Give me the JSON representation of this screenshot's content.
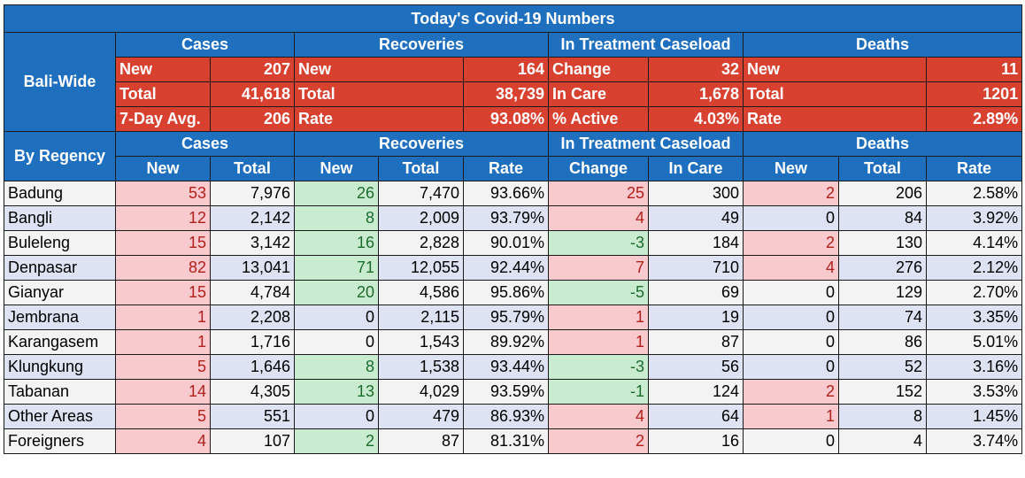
{
  "title": "Today's Covid-19 Numbers",
  "groups": [
    "Cases",
    "Recoveries",
    "In Treatment Caseload",
    "Deaths"
  ],
  "bali_wide": {
    "label": "Bali-Wide",
    "rows": [
      [
        [
          "New",
          "207"
        ],
        [
          "New",
          "164"
        ],
        [
          "Change",
          "32"
        ],
        [
          "New",
          "11"
        ]
      ],
      [
        [
          "Total",
          "41,618"
        ],
        [
          "Total",
          "38,739"
        ],
        [
          "In Care",
          "1,678"
        ],
        [
          "Total",
          "1201"
        ]
      ],
      [
        [
          "7-Day Avg.",
          "206"
        ],
        [
          "Rate",
          "93.08%"
        ],
        [
          "% Active",
          "4.03%"
        ],
        [
          "Rate",
          "2.89%"
        ]
      ]
    ]
  },
  "by_regency": {
    "label": "By Regency",
    "columns": [
      "New",
      "Total",
      "New",
      "Total",
      "Rate",
      "Change",
      "In Care",
      "New",
      "Total",
      "Rate"
    ],
    "rows": [
      [
        "Badung",
        "53",
        "7,976",
        "26",
        "7,470",
        "93.66%",
        "25",
        "300",
        "2",
        "206",
        "2.58%"
      ],
      [
        "Bangli",
        "12",
        "2,142",
        "8",
        "2,009",
        "93.79%",
        "4",
        "49",
        "0",
        "84",
        "3.92%"
      ],
      [
        "Buleleng",
        "15",
        "3,142",
        "16",
        "2,828",
        "90.01%",
        "-3",
        "184",
        "2",
        "130",
        "4.14%"
      ],
      [
        "Denpasar",
        "82",
        "13,041",
        "71",
        "12,055",
        "92.44%",
        "7",
        "710",
        "4",
        "276",
        "2.12%"
      ],
      [
        "Gianyar",
        "15",
        "4,784",
        "20",
        "4,586",
        "95.86%",
        "-5",
        "69",
        "0",
        "129",
        "2.70%"
      ],
      [
        "Jembrana",
        "1",
        "2,208",
        "0",
        "2,115",
        "95.79%",
        "1",
        "19",
        "0",
        "74",
        "3.35%"
      ],
      [
        "Karangasem",
        "1",
        "1,716",
        "0",
        "1,543",
        "89.92%",
        "1",
        "87",
        "0",
        "86",
        "5.01%"
      ],
      [
        "Klungkung",
        "5",
        "1,646",
        "8",
        "1,538",
        "93.44%",
        "-3",
        "56",
        "0",
        "52",
        "3.16%"
      ],
      [
        "Tabanan",
        "14",
        "4,305",
        "13",
        "4,029",
        "93.59%",
        "-1",
        "124",
        "2",
        "152",
        "3.53%"
      ],
      [
        "Other Areas",
        "5",
        "551",
        "0",
        "479",
        "86.93%",
        "4",
        "64",
        "1",
        "8",
        "1.45%"
      ],
      [
        "Foreigners",
        "4",
        "107",
        "2",
        "87",
        "81.31%",
        "2",
        "16",
        "0",
        "4",
        "3.74%"
      ]
    ]
  },
  "colors": {
    "header_blue": "#1f6fbf",
    "summary_red": "#d8412f",
    "increase_pink": "#f8c9cd",
    "decrease_green": "#c9ecd0",
    "row_stripe": "#dde3f2"
  }
}
